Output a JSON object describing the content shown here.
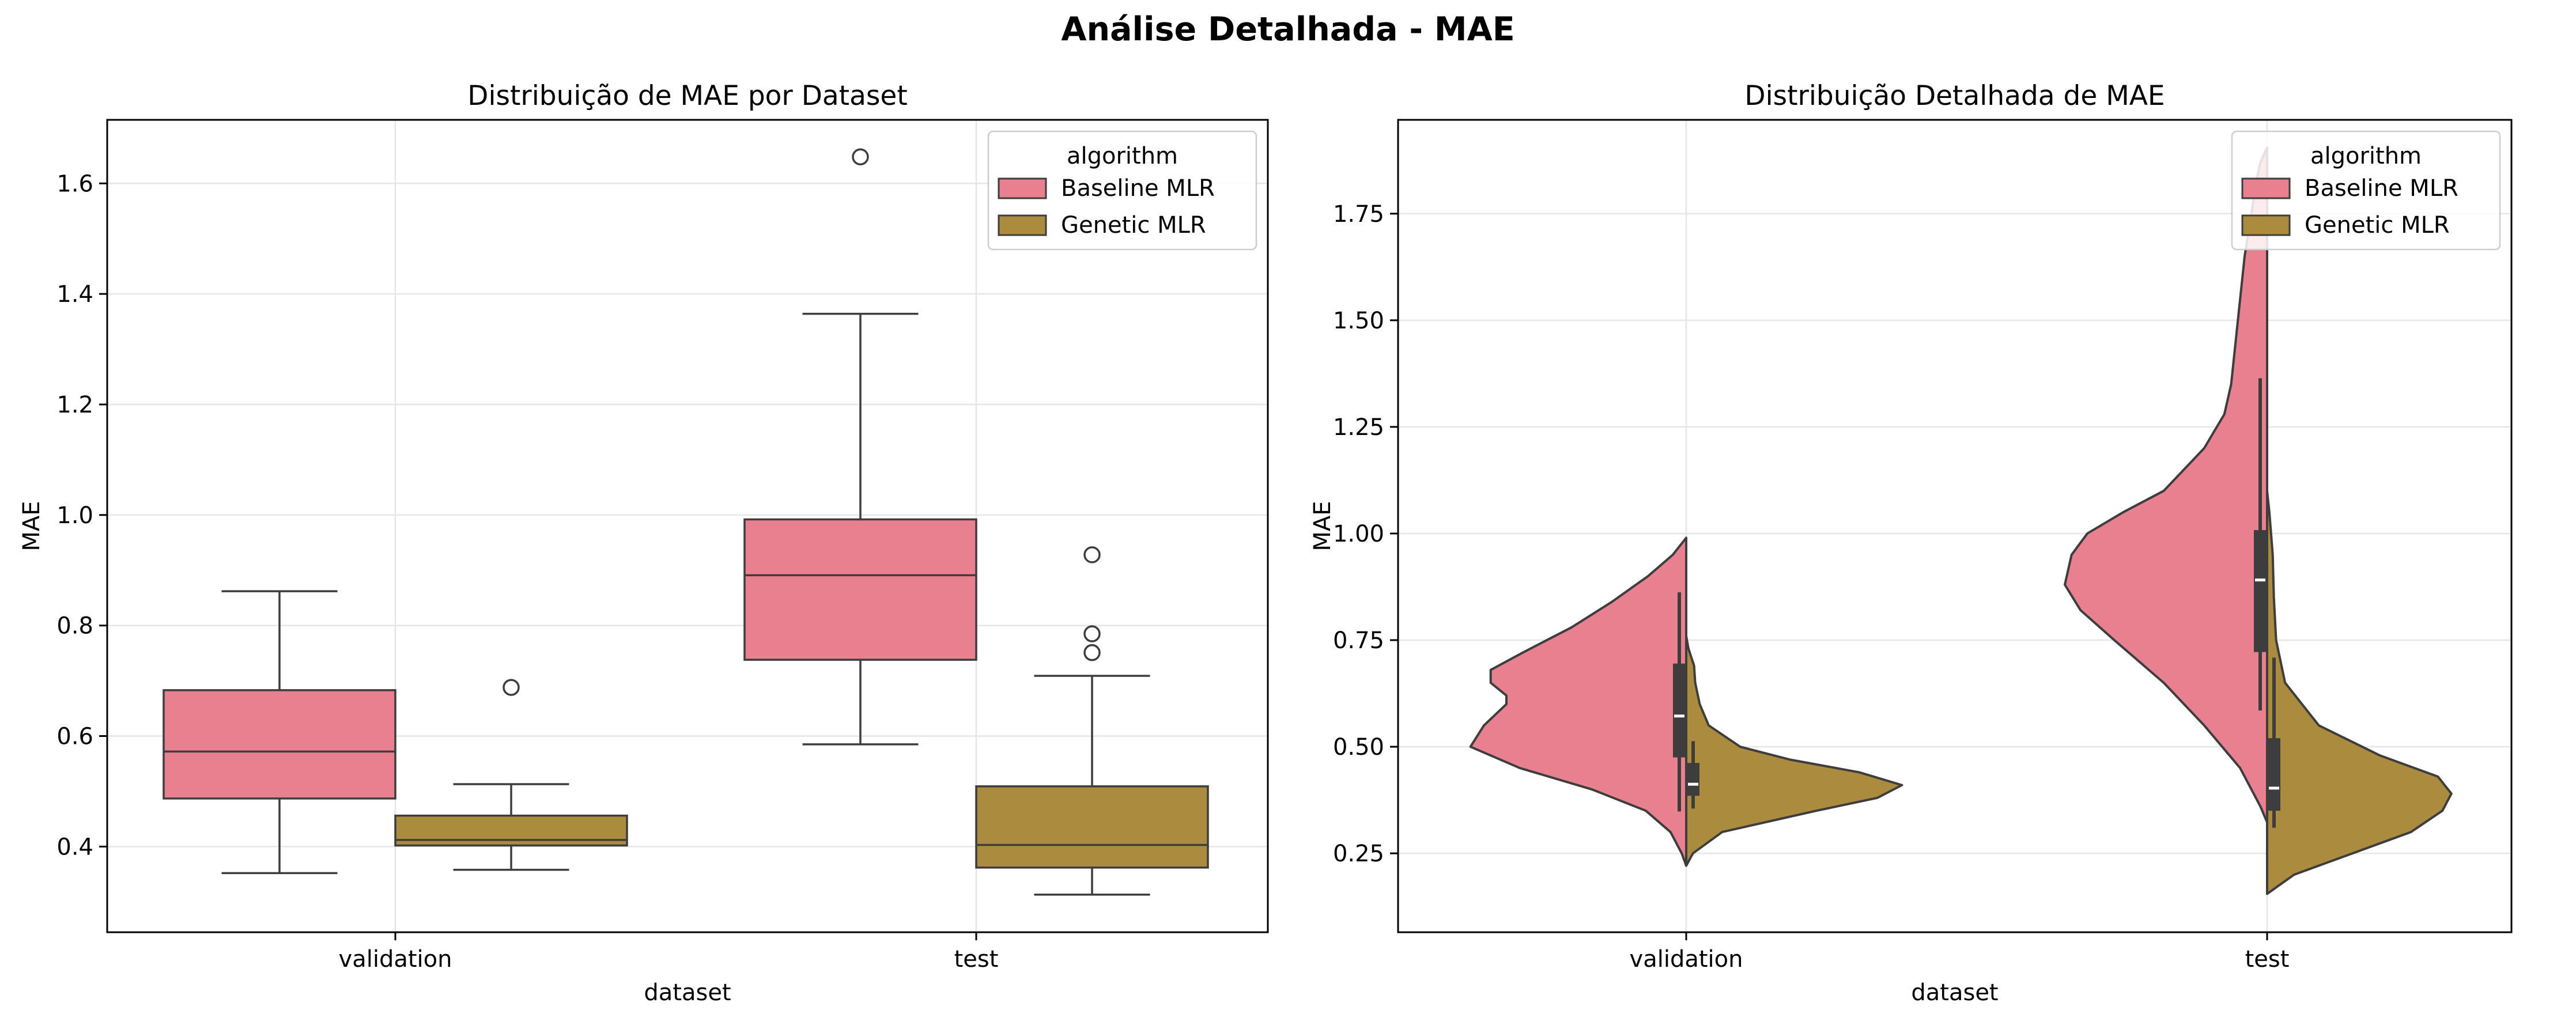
{
  "figure": {
    "title": "Análise Detalhada - MAE"
  },
  "chart_data": [
    {
      "type": "box",
      "title": "Distribuição de MAE por Dataset",
      "xlabel": "dataset",
      "ylabel": "MAE",
      "categories": [
        "validation",
        "test"
      ],
      "ylim": [
        0.245,
        1.715
      ],
      "yticks": [
        0.4,
        0.6,
        0.8,
        1.0,
        1.2,
        1.4,
        1.6
      ],
      "ytick_labels": [
        "0.4",
        "0.6",
        "0.8",
        "1.0",
        "1.2",
        "1.4",
        "1.6"
      ],
      "grid": true,
      "legend": {
        "title": "algorithm",
        "placement": "top-right",
        "entries": [
          "Baseline MLR",
          "Genetic MLR"
        ]
      },
      "series": [
        {
          "name": "Baseline MLR",
          "color": "#e8808f",
          "boxes": [
            {
              "category": "validation",
              "whisker_low": 0.352,
              "q1": 0.487,
              "median": 0.572,
              "q3": 0.683,
              "whisker_high": 0.862,
              "outliers": []
            },
            {
              "category": "test",
              "whisker_low": 0.585,
              "q1": 0.738,
              "median": 0.891,
              "q3": 0.992,
              "whisker_high": 1.364,
              "outliers": [
                1.648
              ]
            }
          ]
        },
        {
          "name": "Genetic MLR",
          "color": "#ab8c3f",
          "boxes": [
            {
              "category": "validation",
              "whisker_low": 0.358,
              "q1": 0.402,
              "median": 0.412,
              "q3": 0.456,
              "whisker_high": 0.513,
              "outliers": [
                0.688
              ]
            },
            {
              "category": "test",
              "whisker_low": 0.313,
              "q1": 0.362,
              "median": 0.403,
              "q3": 0.509,
              "whisker_high": 0.709,
              "outliers": [
                0.751,
                0.785,
                0.928
              ]
            }
          ]
        }
      ]
    },
    {
      "type": "violin",
      "title": "Distribuição Detalhada de MAE",
      "xlabel": "dataset",
      "ylabel": "MAE",
      "categories": [
        "validation",
        "test"
      ],
      "split": true,
      "ylim": [
        0.065,
        1.97
      ],
      "yticks": [
        0.25,
        0.5,
        0.75,
        1.0,
        1.25,
        1.5,
        1.75
      ],
      "ytick_labels": [
        "0.25",
        "0.50",
        "0.75",
        "1.00",
        "1.25",
        "1.50",
        "1.75"
      ],
      "grid": true,
      "legend": {
        "title": "algorithm",
        "placement": "top-right",
        "entries": [
          "Baseline MLR",
          "Genetic MLR"
        ]
      },
      "series": [
        {
          "name": "Baseline MLR",
          "color": "#e8808f",
          "violins": [
            {
              "category": "validation",
              "profile": [
                [
                  0.221,
                  0.0
                ],
                [
                  0.25,
                  0.02
                ],
                [
                  0.3,
                  0.07
                ],
                [
                  0.35,
                  0.18
                ],
                [
                  0.4,
                  0.42
                ],
                [
                  0.45,
                  0.74
                ],
                [
                  0.5,
                  0.96
                ],
                [
                  0.55,
                  0.9
                ],
                [
                  0.6,
                  0.8
                ],
                [
                  0.62,
                  0.8
                ],
                [
                  0.65,
                  0.87
                ],
                [
                  0.68,
                  0.87
                ],
                [
                  0.72,
                  0.73
                ],
                [
                  0.78,
                  0.51
                ],
                [
                  0.84,
                  0.33
                ],
                [
                  0.9,
                  0.17
                ],
                [
                  0.95,
                  0.06
                ],
                [
                  0.99,
                  0.0
                ]
              ],
              "q1": 0.475,
              "median": 0.572,
              "q3": 0.695,
              "whisker_low": 0.348,
              "whisker_high": 0.862
            },
            {
              "category": "test",
              "profile": [
                [
                  0.323,
                  0.0
                ],
                [
                  0.36,
                  0.03
                ],
                [
                  0.45,
                  0.12
                ],
                [
                  0.55,
                  0.28
                ],
                [
                  0.65,
                  0.46
                ],
                [
                  0.75,
                  0.68
                ],
                [
                  0.82,
                  0.83
                ],
                [
                  0.88,
                  0.9
                ],
                [
                  0.95,
                  0.87
                ],
                [
                  1.0,
                  0.8
                ],
                [
                  1.05,
                  0.64
                ],
                [
                  1.1,
                  0.46
                ],
                [
                  1.2,
                  0.28
                ],
                [
                  1.28,
                  0.19
                ],
                [
                  1.35,
                  0.16
                ],
                [
                  1.45,
                  0.14
                ],
                [
                  1.55,
                  0.12
                ],
                [
                  1.65,
                  0.1
                ],
                [
                  1.75,
                  0.07
                ],
                [
                  1.82,
                  0.05
                ],
                [
                  1.87,
                  0.03
                ],
                [
                  1.905,
                  0.0
                ]
              ],
              "q1": 0.722,
              "median": 0.891,
              "q3": 1.008,
              "whisker_low": 0.585,
              "whisker_high": 1.364
            }
          ]
        },
        {
          "name": "Genetic MLR",
          "color": "#ab8c3f",
          "violins": [
            {
              "category": "validation",
              "profile": [
                [
                  0.221,
                  0.0
                ],
                [
                  0.25,
                  0.03
                ],
                [
                  0.3,
                  0.16
                ],
                [
                  0.35,
                  0.58
                ],
                [
                  0.38,
                  0.85
                ],
                [
                  0.41,
                  0.96
                ],
                [
                  0.44,
                  0.77
                ],
                [
                  0.47,
                  0.46
                ],
                [
                  0.5,
                  0.24
                ],
                [
                  0.55,
                  0.1
                ],
                [
                  0.6,
                  0.06
                ],
                [
                  0.65,
                  0.04
                ],
                [
                  0.69,
                  0.035
                ],
                [
                  0.73,
                  0.01
                ],
                [
                  0.76,
                  0.0
                ]
              ],
              "q1": 0.385,
              "median": 0.412,
              "q3": 0.462,
              "whisker_low": 0.355,
              "whisker_high": 0.513
            },
            {
              "category": "test",
              "profile": [
                [
                  0.155,
                  0.0
                ],
                [
                  0.2,
                  0.12
                ],
                [
                  0.25,
                  0.38
                ],
                [
                  0.3,
                  0.64
                ],
                [
                  0.35,
                  0.78
                ],
                [
                  0.39,
                  0.82
                ],
                [
                  0.43,
                  0.76
                ],
                [
                  0.48,
                  0.5
                ],
                [
                  0.55,
                  0.23
                ],
                [
                  0.65,
                  0.08
                ],
                [
                  0.75,
                  0.04
                ],
                [
                  0.85,
                  0.03
                ],
                [
                  0.95,
                  0.025
                ],
                [
                  1.05,
                  0.01
                ],
                [
                  1.1,
                  0.0
                ]
              ],
              "q1": 0.35,
              "median": 0.403,
              "q3": 0.52,
              "whisker_low": 0.31,
              "whisker_high": 0.709
            }
          ]
        }
      ]
    }
  ]
}
